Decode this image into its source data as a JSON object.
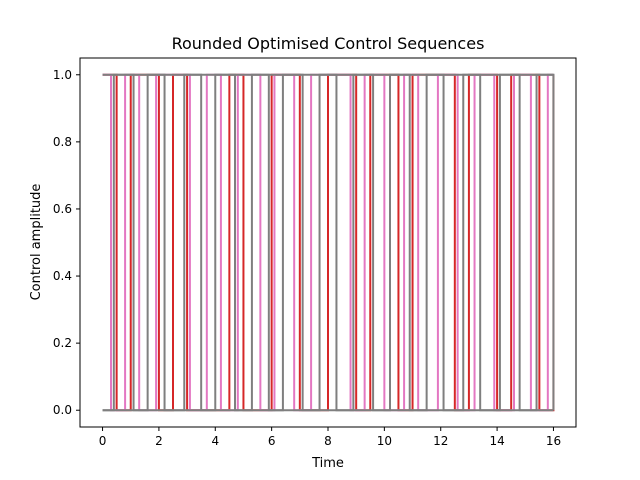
{
  "chart_data": {
    "type": "line",
    "title": "Rounded Optimised Control Sequences",
    "xlabel": "Time",
    "ylabel": "Control amplitude",
    "xlim": [
      -0.8,
      16.8
    ],
    "ylim": [
      -0.05,
      1.05
    ],
    "xticks": [
      "0",
      "2",
      "4",
      "6",
      "8",
      "10",
      "12",
      "14",
      "16"
    ],
    "yticks": [
      "0.0",
      "0.2",
      "0.4",
      "0.6",
      "0.8",
      "1.0"
    ],
    "grid": false,
    "legend": false,
    "plot_style": "binary step sequences, values switching between 0 and 1",
    "colors": [
      "#1f77b4",
      "#ff7f0e",
      "#2ca02c",
      "#d62728",
      "#9467bd",
      "#8c564b",
      "#e377c2",
      "#7f7f7f"
    ],
    "series": [
      {
        "color": "#d62728",
        "x": [
          0.0,
          0.5,
          1.0,
          2.0,
          2.5,
          3.0,
          4.5,
          5.0,
          6.0,
          6.5,
          7.0,
          8.0,
          9.0,
          9.5,
          10.5,
          11.0,
          12.5,
          13.0,
          14.0,
          14.5,
          15.5,
          16.0
        ],
        "values": [
          1,
          0,
          1,
          0,
          1,
          0,
          1,
          0,
          1,
          1,
          0,
          1,
          0,
          1,
          0,
          1,
          0,
          1,
          0,
          1,
          0,
          1
        ]
      },
      {
        "color": "#e377c2",
        "x": [
          0.0,
          0.3,
          0.8,
          1.3,
          1.9,
          2.4,
          3.1,
          3.7,
          4.2,
          4.8,
          5.6,
          6.1,
          6.8,
          7.4,
          8.1,
          8.8,
          9.3,
          10.0,
          10.7,
          11.2,
          11.9,
          12.6,
          13.2,
          13.9,
          14.6,
          15.2,
          15.8,
          16.0
        ],
        "values": [
          1,
          0,
          1,
          0,
          1,
          1,
          0,
          1,
          0,
          1,
          0,
          1,
          0,
          1,
          1,
          0,
          1,
          0,
          1,
          0,
          1,
          0,
          1,
          0,
          1,
          0,
          1,
          1
        ]
      },
      {
        "color": "#7f7f7f",
        "x": [
          0.0,
          0.4,
          1.1,
          1.6,
          2.2,
          2.9,
          3.5,
          4.0,
          4.7,
          5.3,
          5.9,
          6.4,
          7.1,
          7.7,
          8.3,
          8.9,
          9.6,
          10.2,
          10.9,
          11.5,
          12.1,
          12.8,
          13.4,
          14.1,
          14.8,
          15.4,
          16.0
        ],
        "values": [
          0,
          1,
          0,
          1,
          0,
          1,
          0,
          1,
          0,
          1,
          0,
          1,
          0,
          1,
          0,
          1,
          0,
          1,
          0,
          1,
          0,
          1,
          0,
          1,
          0,
          1,
          0
        ]
      }
    ]
  }
}
